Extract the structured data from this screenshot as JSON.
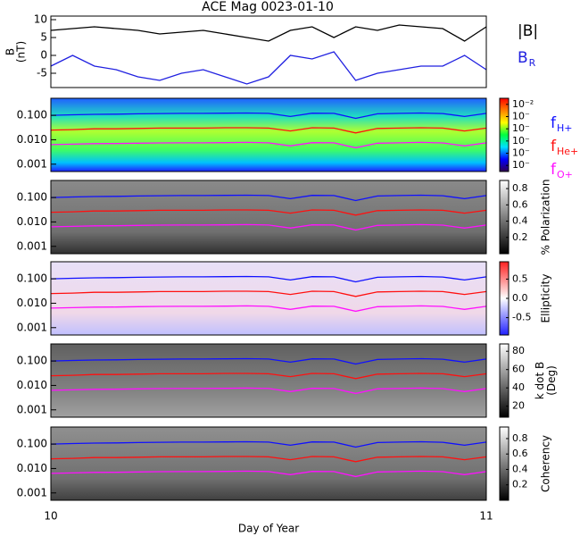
{
  "chart_data": [
    {
      "type": "line",
      "title": "ACE Mag 0023-01-10",
      "ylabel": [
        "B",
        "(nT)"
      ],
      "x": [
        10,
        10.05,
        10.1,
        10.15,
        10.2,
        10.25,
        10.3,
        10.35,
        10.4,
        10.45,
        10.5,
        10.55,
        10.6,
        10.65,
        10.7,
        10.75,
        10.8,
        10.85,
        10.9,
        10.95,
        11
      ],
      "xlim": [
        10,
        11
      ],
      "ylim": [
        -9,
        11
      ],
      "yticks": [
        10,
        5,
        0,
        -5
      ],
      "legend": "right",
      "series": [
        {
          "name": "|B|",
          "color": "#000000",
          "values": [
            7,
            7.5,
            8,
            7.5,
            7,
            6,
            6.5,
            7,
            6,
            5,
            4,
            7,
            8,
            5,
            8,
            7,
            8.5,
            8,
            7.5,
            4,
            8
          ]
        },
        {
          "name": "B",
          "subscript": "R",
          "color": "#2020e0",
          "values": [
            -3,
            0,
            -3,
            -4,
            -6,
            -7,
            -5,
            -4,
            -6,
            -8,
            -6,
            0,
            -1,
            1,
            -7,
            -5,
            -4,
            -3,
            -3,
            0,
            -4
          ]
        }
      ]
    },
    {
      "type": "line",
      "log": true,
      "x": [
        10,
        10.05,
        10.1,
        10.15,
        10.2,
        10.25,
        10.3,
        10.35,
        10.4,
        10.45,
        10.5,
        10.55,
        10.6,
        10.65,
        10.7,
        10.75,
        10.8,
        10.85,
        10.9,
        10.95,
        11
      ],
      "xlim": [
        10,
        11
      ],
      "ylim": [
        0.0005,
        0.5
      ],
      "yticks": [
        {
          "value": 0.1,
          "label": "0.100"
        },
        {
          "value": 0.01,
          "label": "0.010"
        },
        {
          "value": 0.001,
          "label": "0.001"
        }
      ],
      "legend": "right",
      "colorbar": {
        "lim": [
          -7.5,
          -1.5
        ],
        "colors": [
          "#300050",
          "#0000ff",
          "#00e0ff",
          "#00ff40",
          "#ffff00",
          "#ff8000",
          "#ff0000"
        ],
        "ticks": [
          {
            "value": -2,
            "label": "10⁻²"
          },
          {
            "value": -3,
            "label": "10⁻"
          },
          {
            "value": -4,
            "label": "10⁻"
          },
          {
            "value": -5,
            "label": "10⁻"
          },
          {
            "value": -6,
            "label": "10⁻"
          },
          {
            "value": -7,
            "label": "10⁻"
          }
        ]
      },
      "series": [
        {
          "name": "f",
          "subscript": "H+",
          "color": "#1010ff",
          "values": [
            0.1,
            0.105,
            0.11,
            0.112,
            0.115,
            0.118,
            0.12,
            0.12,
            0.122,
            0.125,
            0.12,
            0.09,
            0.122,
            0.12,
            0.075,
            0.115,
            0.12,
            0.125,
            0.118,
            0.09,
            0.12
          ]
        },
        {
          "name": "f",
          "subscript": "He+",
          "color": "#ff1010",
          "values": [
            0.025,
            0.026,
            0.028,
            0.028,
            0.029,
            0.03,
            0.03,
            0.03,
            0.031,
            0.031,
            0.03,
            0.023,
            0.031,
            0.03,
            0.019,
            0.029,
            0.03,
            0.031,
            0.03,
            0.023,
            0.03
          ]
        },
        {
          "name": "f",
          "subscript": "O+",
          "color": "#ff10ff",
          "values": [
            0.0063,
            0.0066,
            0.0069,
            0.007,
            0.0072,
            0.0074,
            0.0075,
            0.0075,
            0.0076,
            0.0078,
            0.0075,
            0.0056,
            0.0076,
            0.0075,
            0.0047,
            0.0072,
            0.0075,
            0.0078,
            0.0074,
            0.0056,
            0.0075
          ]
        }
      ]
    },
    {
      "type": "line",
      "log": true,
      "x": [
        10,
        10.05,
        10.1,
        10.15,
        10.2,
        10.25,
        10.3,
        10.35,
        10.4,
        10.45,
        10.5,
        10.55,
        10.6,
        10.65,
        10.7,
        10.75,
        10.8,
        10.85,
        10.9,
        10.95,
        11
      ],
      "xlim": [
        10,
        11
      ],
      "ylim": [
        0.0005,
        0.5
      ],
      "yticks": [
        {
          "value": 0.1,
          "label": "0.100"
        },
        {
          "value": 0.01,
          "label": "0.010"
        },
        {
          "value": 0.001,
          "label": "0.001"
        }
      ],
      "colorbar": {
        "label": [
          "% Polarization"
        ],
        "lim": [
          0,
          0.9
        ],
        "colors": [
          "#000000",
          "#ffffff"
        ],
        "ticks": [
          0.8,
          0.6,
          0.4,
          0.2
        ]
      },
      "series": [
        {
          "color": "#1010ff",
          "values": [
            0.1,
            0.105,
            0.11,
            0.112,
            0.115,
            0.118,
            0.12,
            0.12,
            0.122,
            0.125,
            0.12,
            0.09,
            0.122,
            0.12,
            0.075,
            0.115,
            0.12,
            0.125,
            0.118,
            0.09,
            0.12
          ]
        },
        {
          "color": "#ff1010",
          "values": [
            0.025,
            0.026,
            0.028,
            0.028,
            0.029,
            0.03,
            0.03,
            0.03,
            0.031,
            0.031,
            0.03,
            0.023,
            0.031,
            0.03,
            0.019,
            0.029,
            0.03,
            0.031,
            0.03,
            0.023,
            0.03
          ]
        },
        {
          "color": "#ff10ff",
          "values": [
            0.0063,
            0.0066,
            0.0069,
            0.007,
            0.0072,
            0.0074,
            0.0075,
            0.0075,
            0.0076,
            0.0078,
            0.0075,
            0.0056,
            0.0076,
            0.0075,
            0.0047,
            0.0072,
            0.0075,
            0.0078,
            0.0074,
            0.0056,
            0.0075
          ]
        }
      ]
    },
    {
      "type": "line",
      "log": true,
      "x": [
        10,
        10.05,
        10.1,
        10.15,
        10.2,
        10.25,
        10.3,
        10.35,
        10.4,
        10.45,
        10.5,
        10.55,
        10.6,
        10.65,
        10.7,
        10.75,
        10.8,
        10.85,
        10.9,
        10.95,
        11
      ],
      "xlim": [
        10,
        11
      ],
      "ylim": [
        0.0005,
        0.5
      ],
      "yticks": [
        {
          "value": 0.1,
          "label": "0.100"
        },
        {
          "value": 0.01,
          "label": "0.010"
        },
        {
          "value": 0.001,
          "label": "0.001"
        }
      ],
      "colorbar": {
        "label": [
          "Ellipticity"
        ],
        "lim": [
          -0.95,
          0.95
        ],
        "colors": [
          "#2020ff",
          "#ffffff",
          "#ff2020"
        ],
        "ticks": [
          0.5,
          {
            "value": 0,
            "label": "0.0"
          },
          -0.5
        ]
      },
      "series": [
        {
          "color": "#1010ff",
          "values": [
            0.1,
            0.105,
            0.11,
            0.112,
            0.115,
            0.118,
            0.12,
            0.12,
            0.122,
            0.125,
            0.12,
            0.09,
            0.122,
            0.12,
            0.075,
            0.115,
            0.12,
            0.125,
            0.118,
            0.09,
            0.12
          ]
        },
        {
          "color": "#ff1010",
          "values": [
            0.025,
            0.026,
            0.028,
            0.028,
            0.029,
            0.03,
            0.03,
            0.03,
            0.031,
            0.031,
            0.03,
            0.023,
            0.031,
            0.03,
            0.019,
            0.029,
            0.03,
            0.031,
            0.03,
            0.023,
            0.03
          ]
        },
        {
          "color": "#ff10ff",
          "values": [
            0.0063,
            0.0066,
            0.0069,
            0.007,
            0.0072,
            0.0074,
            0.0075,
            0.0075,
            0.0076,
            0.0078,
            0.0075,
            0.0056,
            0.0076,
            0.0075,
            0.0047,
            0.0072,
            0.0075,
            0.0078,
            0.0074,
            0.0056,
            0.0075
          ]
        }
      ]
    },
    {
      "type": "line",
      "log": true,
      "x": [
        10,
        10.05,
        10.1,
        10.15,
        10.2,
        10.25,
        10.3,
        10.35,
        10.4,
        10.45,
        10.5,
        10.55,
        10.6,
        10.65,
        10.7,
        10.75,
        10.8,
        10.85,
        10.9,
        10.95,
        11
      ],
      "xlim": [
        10,
        11
      ],
      "ylim": [
        0.0005,
        0.5
      ],
      "yticks": [
        {
          "value": 0.1,
          "label": "0.100"
        },
        {
          "value": 0.01,
          "label": "0.010"
        },
        {
          "value": 0.001,
          "label": "0.001"
        }
      ],
      "colorbar": {
        "label": [
          "k dot B",
          "(Deg)"
        ],
        "lim": [
          8,
          88
        ],
        "colors": [
          "#000000",
          "#ffffff"
        ],
        "ticks": [
          80,
          60,
          40,
          20
        ]
      },
      "series": [
        {
          "color": "#1010ff",
          "values": [
            0.1,
            0.105,
            0.11,
            0.112,
            0.115,
            0.118,
            0.12,
            0.12,
            0.122,
            0.125,
            0.12,
            0.09,
            0.122,
            0.12,
            0.075,
            0.115,
            0.12,
            0.125,
            0.118,
            0.09,
            0.12
          ]
        },
        {
          "color": "#ff1010",
          "values": [
            0.025,
            0.026,
            0.028,
            0.028,
            0.029,
            0.03,
            0.03,
            0.03,
            0.031,
            0.031,
            0.03,
            0.023,
            0.031,
            0.03,
            0.019,
            0.029,
            0.03,
            0.031,
            0.03,
            0.023,
            0.03
          ]
        },
        {
          "color": "#ff10ff",
          "values": [
            0.0063,
            0.0066,
            0.0069,
            0.007,
            0.0072,
            0.0074,
            0.0075,
            0.0075,
            0.0076,
            0.0078,
            0.0075,
            0.0056,
            0.0076,
            0.0075,
            0.0047,
            0.0072,
            0.0075,
            0.0078,
            0.0074,
            0.0056,
            0.0075
          ]
        }
      ]
    },
    {
      "type": "line",
      "log": true,
      "xlabel": "Day of Year",
      "xticks": [
        10,
        11
      ],
      "x": [
        10,
        10.05,
        10.1,
        10.15,
        10.2,
        10.25,
        10.3,
        10.35,
        10.4,
        10.45,
        10.5,
        10.55,
        10.6,
        10.65,
        10.7,
        10.75,
        10.8,
        10.85,
        10.9,
        10.95,
        11
      ],
      "xlim": [
        10,
        11
      ],
      "ylim": [
        0.0005,
        0.5
      ],
      "yticks": [
        {
          "value": 0.1,
          "label": "0.100"
        },
        {
          "value": 0.01,
          "label": "0.010"
        },
        {
          "value": 0.001,
          "label": "0.001"
        }
      ],
      "colorbar": {
        "label": [
          "Coherency"
        ],
        "lim": [
          0,
          0.95
        ],
        "colors": [
          "#000000",
          "#ffffff"
        ],
        "ticks": [
          0.8,
          0.6,
          0.4,
          0.2
        ]
      },
      "series": [
        {
          "color": "#1010ff",
          "values": [
            0.1,
            0.105,
            0.11,
            0.112,
            0.115,
            0.118,
            0.12,
            0.12,
            0.122,
            0.125,
            0.12,
            0.09,
            0.122,
            0.12,
            0.075,
            0.115,
            0.12,
            0.125,
            0.118,
            0.09,
            0.12
          ]
        },
        {
          "color": "#ff1010",
          "values": [
            0.025,
            0.026,
            0.028,
            0.028,
            0.029,
            0.03,
            0.03,
            0.03,
            0.031,
            0.031,
            0.03,
            0.023,
            0.031,
            0.03,
            0.019,
            0.029,
            0.03,
            0.031,
            0.03,
            0.023,
            0.03
          ]
        },
        {
          "color": "#ff10ff",
          "values": [
            0.0063,
            0.0066,
            0.0069,
            0.007,
            0.0072,
            0.0074,
            0.0075,
            0.0075,
            0.0076,
            0.0078,
            0.0075,
            0.0056,
            0.0076,
            0.0075,
            0.0047,
            0.0072,
            0.0075,
            0.0078,
            0.0074,
            0.0056,
            0.0075
          ]
        }
      ]
    }
  ]
}
